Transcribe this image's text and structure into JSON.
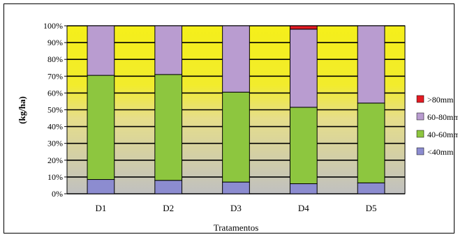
{
  "chart_data": {
    "type": "bar",
    "stacked": true,
    "normalized": true,
    "categories": [
      "D1",
      "D2",
      "D3",
      "D4",
      "D5"
    ],
    "series": [
      {
        "name": "<40mm",
        "color": "#8c8cd0",
        "values": [
          8.5,
          8,
          7,
          6,
          6.5
        ]
      },
      {
        "name": "40-60mm",
        "color": "#8dc63f",
        "values": [
          62,
          63,
          53.5,
          45.5,
          47.5
        ]
      },
      {
        "name": "60-80mm",
        "color": "#b99cd0",
        "values": [
          29.5,
          29,
          39.5,
          46.5,
          46
        ]
      },
      {
        "name": ">80mm",
        "color": "#e31b23",
        "values": [
          0,
          0,
          0,
          2,
          0
        ]
      }
    ],
    "xlabel": "Tratamentos",
    "ylabel": "(kg/ha)",
    "ylim": [
      0,
      100
    ],
    "yticks": [
      "0%",
      "10%",
      "20%",
      "30%",
      "40%",
      "50%",
      "60%",
      "70%",
      "80%",
      "90%",
      "100%"
    ],
    "grid": true,
    "legend_position": "right",
    "legend_order": [
      ">80mm",
      "60-80mm",
      "40-60mm",
      "<40mm"
    ],
    "background_gradient": [
      "#f5ef1a",
      "#c0c0c0"
    ]
  }
}
